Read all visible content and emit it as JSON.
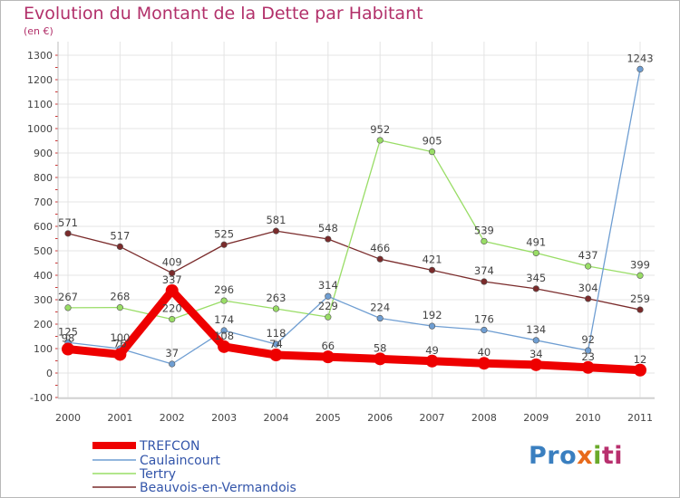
{
  "title": "Evolution du Montant de la Dette par Habitant",
  "subtitle": "(en €)",
  "logo": {
    "part1": "Pro",
    "part2": "x",
    "part3": "i",
    "part4": "ti"
  },
  "chart_data": {
    "type": "line",
    "categories": [
      "2000",
      "2001",
      "2002",
      "2003",
      "2004",
      "2005",
      "2006",
      "2007",
      "2008",
      "2009",
      "2010",
      "2011"
    ],
    "y_ticks": [
      -100,
      0,
      100,
      200,
      300,
      400,
      500,
      600,
      700,
      800,
      900,
      1000,
      1100,
      1200,
      1300
    ],
    "ylim": [
      -100,
      1300
    ],
    "grid": true,
    "legend_position": "bottom-left",
    "series": [
      {
        "name": "TREFCON",
        "color": "#ee0000",
        "values": [
          98,
          76,
          337,
          108,
          74,
          66,
          58,
          49,
          40,
          34,
          23,
          12
        ],
        "labels": [
          "98",
          "76",
          "337",
          "108",
          "74",
          "66",
          "58",
          "49",
          "40",
          "34",
          "23",
          "12"
        ]
      },
      {
        "name": "Caulaincourt",
        "color": "#6f9ed2",
        "values": [
          125,
          100,
          37,
          174,
          118,
          314,
          224,
          192,
          176,
          134,
          92,
          1243
        ],
        "labels": [
          "125",
          "100",
          "37",
          "174",
          "118",
          "314",
          "224",
          "192",
          "176",
          "134",
          "92",
          "1243"
        ]
      },
      {
        "name": "Tertry",
        "color": "#99dd66",
        "values": [
          267,
          268,
          220,
          296,
          263,
          229,
          952,
          905,
          539,
          491,
          437,
          399
        ],
        "labels": [
          "267",
          "268",
          "220",
          "296",
          "263",
          "229",
          "952",
          "905",
          "539",
          "491",
          "437",
          "399"
        ]
      },
      {
        "name": "Beauvois-en-Vermandois",
        "color": "#7a2b2b",
        "values": [
          571,
          517,
          409,
          525,
          581,
          548,
          466,
          421,
          374,
          345,
          304,
          259
        ],
        "labels": [
          "571",
          "517",
          "409",
          "525",
          "581",
          "548",
          "466",
          "421",
          "374",
          "345",
          "304",
          "259"
        ]
      }
    ]
  }
}
